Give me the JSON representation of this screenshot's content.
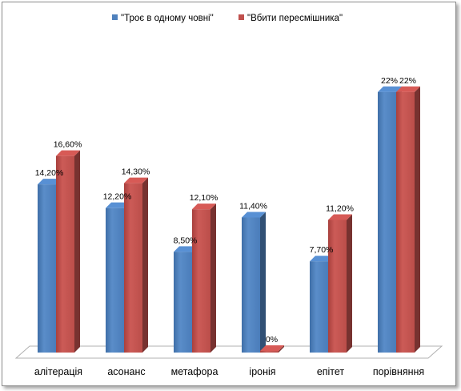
{
  "chart_data": {
    "type": "bar",
    "title": "",
    "xlabel": "",
    "ylabel": "",
    "categories": [
      "алітерація",
      "асонанс",
      "метафора",
      "іронія",
      "епітет",
      "порівняння"
    ],
    "series": [
      {
        "name": "\"Троє в одному човні\"",
        "color": "#4f81bd",
        "values": [
          14.2,
          12.2,
          8.5,
          11.4,
          7.7,
          22
        ],
        "labels": [
          "14,20%",
          "12,20%",
          "8,50%",
          "11,40%",
          "7,70%",
          "22%"
        ]
      },
      {
        "name": "\"Вбити пересмішника\"",
        "color": "#c0504d",
        "values": [
          16.6,
          14.3,
          12.1,
          0,
          11.2,
          22
        ],
        "labels": [
          "16,60%",
          "14,30%",
          "12,10%",
          "0%",
          "11,20%",
          "22%"
        ]
      }
    ],
    "ylim": [
      0,
      24
    ],
    "grid": false,
    "legend_position": "top"
  }
}
